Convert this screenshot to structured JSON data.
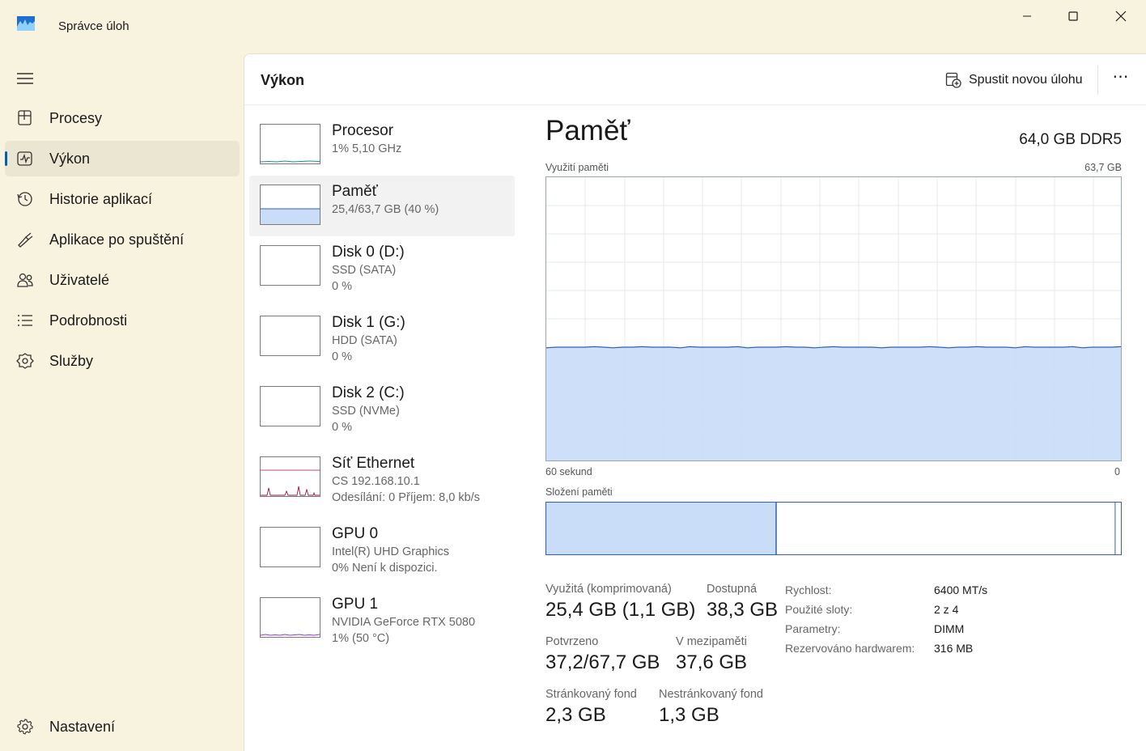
{
  "window": {
    "title": "Správce úloh",
    "icon": "task-manager-icon",
    "controls": [
      "minimize-icon",
      "maximize-icon",
      "close-icon"
    ]
  },
  "sidebar": {
    "items": [
      {
        "label": "Procesy",
        "icon": "processes-icon"
      },
      {
        "label": "Výkon",
        "icon": "performance-icon",
        "active": true
      },
      {
        "label": "Historie aplikací",
        "icon": "history-icon"
      },
      {
        "label": "Aplikace po spuštění",
        "icon": "startup-icon"
      },
      {
        "label": "Uživatelé",
        "icon": "users-icon"
      },
      {
        "label": "Podrobnosti",
        "icon": "details-icon"
      },
      {
        "label": "Služby",
        "icon": "services-icon"
      }
    ],
    "settings": {
      "label": "Nastavení",
      "icon": "gear-icon"
    }
  },
  "header": {
    "title": "Výkon",
    "run_task_label": "Spustit novou úlohu",
    "more_label": "⋯"
  },
  "devices": [
    {
      "name": "Procesor",
      "line1": "1%  5,10 GHz",
      "line2": ""
    },
    {
      "name": "Paměť",
      "line1": "25,4/63,7 GB (40 %)",
      "line2": ""
    },
    {
      "name": "Disk 0 (D:)",
      "line1": "SSD (SATA)",
      "line2": "0 %"
    },
    {
      "name": "Disk 1 (G:)",
      "line1": "HDD (SATA)",
      "line2": "0 %"
    },
    {
      "name": "Disk 2 (C:)",
      "line1": "SSD (NVMe)",
      "line2": "0 %"
    },
    {
      "name": "Síť Ethernet",
      "line1": "CS 192.168.10.1",
      "line2": "Odesílání: 0 Příjem: 8,0 kb/s"
    },
    {
      "name": "GPU 0",
      "line1": "Intel(R) UHD Graphics",
      "line2": "0%  Není k dispozici."
    },
    {
      "name": "GPU 1",
      "line1": "NVIDIA GeForce RTX 5080",
      "line2": "1%  (50 °C)"
    }
  ],
  "detail": {
    "title": "Paměť",
    "spec": "64,0 GB DDR5",
    "usage_label": "Využití paměti",
    "usage_max": "63,7 GB",
    "time_left": "60 sekund",
    "time_right": "0",
    "composition_label": "Složení paměti",
    "usage_fraction": 0.4,
    "composition": {
      "in_use_fraction": 0.4,
      "modified_fraction": 0.01
    },
    "stats": {
      "in_use_label": "Využitá (komprimovaná)",
      "in_use_value": "25,4 GB (1,1 GB)",
      "available_label": "Dostupná",
      "available_value": "38,3 GB",
      "committed_label": "Potvrzeno",
      "committed_value": "37,2/67,7 GB",
      "cached_label": "V mezipaměti",
      "cached_value": "37,6 GB",
      "paged_label": "Stránkovaný fond",
      "paged_value": "2,3 GB",
      "nonpaged_label": "Nestránkovaný fond",
      "nonpaged_value": "1,3 GB"
    },
    "props": [
      {
        "label": "Rychlost:",
        "value": "6400 MT/s"
      },
      {
        "label": "Použité sloty:",
        "value": "2 z 4"
      },
      {
        "label": "Parametry:",
        "value": "DIMM"
      },
      {
        "label": "Rezervováno hardwarem:",
        "value": "316 MB"
      }
    ]
  },
  "colors": {
    "memory_fill": "#c9dcf8",
    "memory_line": "#2f61b0",
    "sidebar_bg": "#f8f3df",
    "accent": "#005fb8",
    "network_line": "#a0134a",
    "gpu_line": "#8a3ad6",
    "cpu_line": "#1f8a8a"
  }
}
